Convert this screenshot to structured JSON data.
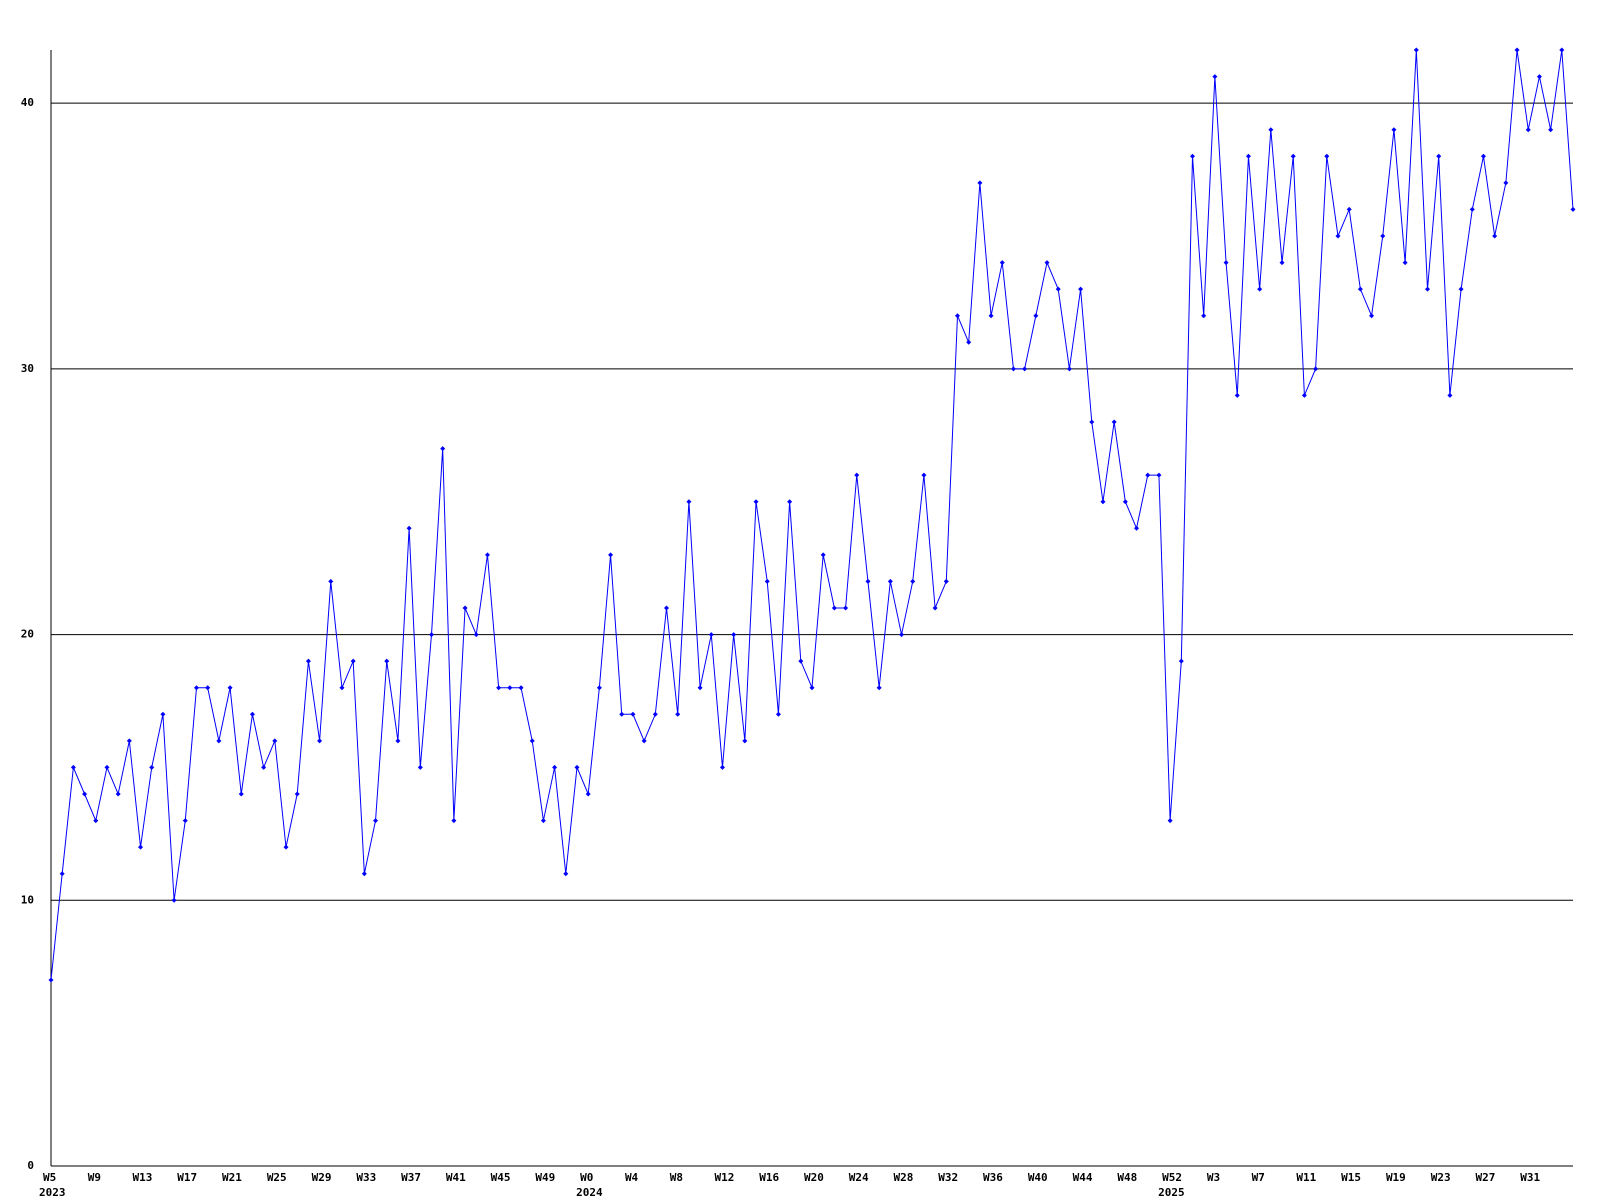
{
  "chart_data": {
    "type": "line",
    "color": "#0000ff",
    "grid": true,
    "ylim": [
      0,
      42
    ],
    "yticks": [
      0,
      10,
      20,
      30,
      40
    ],
    "categories": [
      "W5",
      null,
      null,
      null,
      "W9",
      null,
      null,
      null,
      "W13",
      null,
      null,
      null,
      "W17",
      null,
      null,
      null,
      "W21",
      null,
      null,
      null,
      "W25",
      null,
      null,
      null,
      "W29",
      null,
      null,
      null,
      "W33",
      null,
      null,
      null,
      "W37",
      null,
      null,
      null,
      "W41",
      null,
      null,
      null,
      "W45",
      null,
      null,
      null,
      "W49",
      null,
      null,
      null,
      "W0",
      null,
      null,
      null,
      "W4",
      null,
      null,
      null,
      "W8",
      null,
      null,
      null,
      "W12",
      null,
      null,
      null,
      "W16",
      null,
      null,
      null,
      "W20",
      null,
      null,
      null,
      "W24",
      null,
      null,
      null,
      "W28",
      null,
      null,
      null,
      "W32",
      null,
      null,
      null,
      "W36",
      null,
      null,
      null,
      "W40",
      null,
      null,
      null,
      "W44",
      null,
      null,
      null,
      "W48",
      null,
      null,
      null,
      "W52",
      null,
      null,
      null,
      "W3",
      null,
      null,
      null,
      "W7",
      null,
      null,
      null,
      "W11",
      null,
      null,
      null,
      "W15",
      null,
      null,
      null,
      "W19",
      null,
      null,
      null,
      "W23",
      null,
      null,
      null,
      "W27",
      null,
      null,
      null,
      "W31",
      null,
      null,
      null,
      null
    ],
    "category_years": [
      "2023",
      null,
      null,
      null,
      null,
      null,
      null,
      null,
      null,
      null,
      null,
      null,
      null,
      null,
      null,
      null,
      null,
      null,
      null,
      null,
      null,
      null,
      null,
      null,
      null,
      null,
      null,
      null,
      null,
      null,
      null,
      null,
      null,
      null,
      null,
      null,
      null,
      null,
      null,
      null,
      null,
      null,
      null,
      null,
      null,
      null,
      null,
      null,
      "2024",
      null,
      null,
      null,
      null,
      null,
      null,
      null,
      null,
      null,
      null,
      null,
      null,
      null,
      null,
      null,
      null,
      null,
      null,
      null,
      null,
      null,
      null,
      null,
      null,
      null,
      null,
      null,
      null,
      null,
      null,
      null,
      null,
      null,
      null,
      null,
      null,
      null,
      null,
      null,
      null,
      null,
      null,
      null,
      null,
      null,
      null,
      null,
      null,
      null,
      null,
      null,
      "2025",
      null,
      null,
      null,
      null,
      null,
      null,
      null,
      null,
      null,
      null,
      null,
      null,
      null,
      null,
      null,
      null,
      null,
      null,
      null,
      null,
      null,
      null,
      null,
      null,
      null,
      null,
      null,
      null,
      null,
      null,
      null,
      null,
      null,
      null,
      null
    ],
    "values": [
      7,
      11,
      15,
      14,
      13,
      15,
      14,
      16,
      12,
      15,
      17,
      10,
      13,
      18,
      18,
      16,
      18,
      14,
      17,
      15,
      16,
      12,
      14,
      19,
      16,
      22,
      18,
      19,
      11,
      13,
      19,
      16,
      24,
      15,
      20,
      27,
      13,
      21,
      20,
      23,
      18,
      18,
      18,
      16,
      13,
      15,
      11,
      15,
      14,
      18,
      23,
      17,
      17,
      16,
      17,
      21,
      17,
      25,
      18,
      20,
      15,
      20,
      16,
      25,
      22,
      17,
      25,
      19,
      18,
      23,
      21,
      21,
      26,
      22,
      18,
      22,
      20,
      22,
      26,
      21,
      22,
      32,
      31,
      37,
      32,
      34,
      30,
      30,
      32,
      34,
      33,
      30,
      33,
      28,
      25,
      28,
      25,
      24,
      26,
      26,
      13,
      19,
      38,
      32,
      41,
      34,
      29,
      38,
      33,
      39,
      34,
      38,
      29,
      30,
      38,
      35,
      36,
      33,
      32,
      35,
      39,
      34,
      42,
      33,
      38,
      29,
      33,
      36,
      38,
      35,
      37,
      42,
      39,
      41,
      39,
      42,
      36
    ]
  }
}
